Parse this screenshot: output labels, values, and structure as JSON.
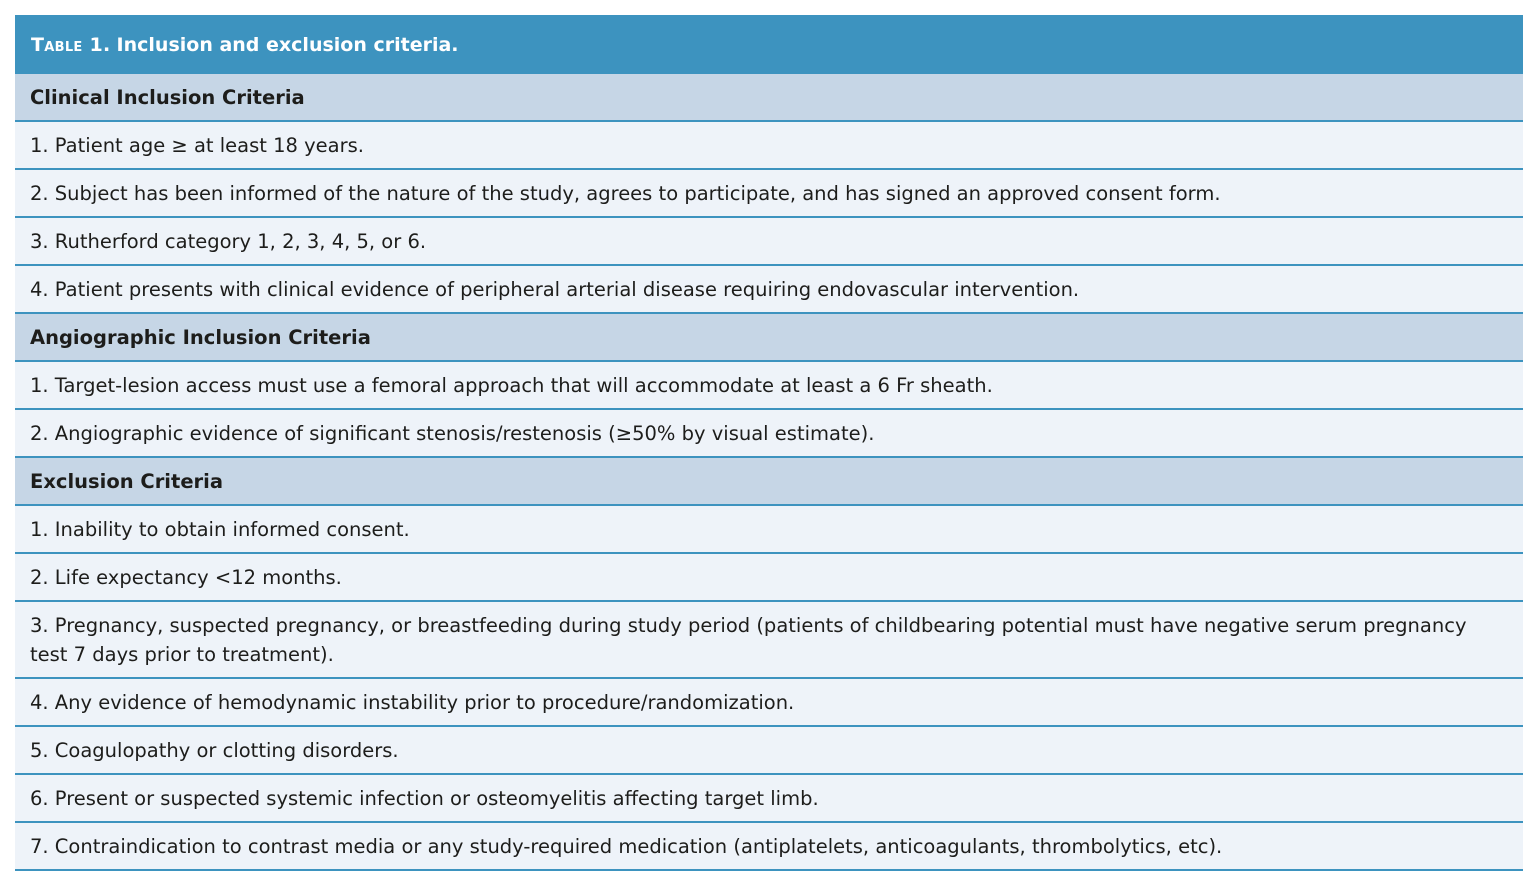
{
  "table": {
    "label": "Table 1.",
    "title": "Inclusion and exclusion criteria."
  },
  "sections": [
    {
      "heading": "Clinical Inclusion Criteria",
      "items": [
        "1. Patient age ≥ at least 18 years.",
        "2. Subject has been informed of the nature of the study, agrees to participate, and has signed an approved consent form.",
        "3. Rutherford category 1, 2, 3, 4, 5, or 6.",
        "4. Patient presents with clinical evidence of peripheral arterial disease requiring endovascular intervention."
      ]
    },
    {
      "heading": "Angiographic Inclusion Criteria",
      "items": [
        "1. Target-lesion access must use a femoral approach that will accommodate at least a 6 Fr sheath.",
        "2. Angiographic evidence of significant stenosis/restenosis (≥50% by visual estimate)."
      ]
    },
    {
      "heading": "Exclusion Criteria",
      "items": [
        "1. Inability to obtain informed consent.",
        "2. Life expectancy <12 months.",
        "3. Pregnancy, suspected pregnancy, or breastfeeding during study period (patients of childbearing potential must have negative serum pregnancy test 7 days prior to treatment).",
        "4. Any evidence of hemodynamic instability prior to procedure/randomization.",
        "5. Coagulopathy or clotting disorders.",
        "6. Present or suspected systemic infection or osteomyelitis affecting target limb.",
        "7. Contraindication to contrast media or any study-required medication (antiplatelets, anticoagulants, thrombolytics, etc)."
      ]
    }
  ]
}
